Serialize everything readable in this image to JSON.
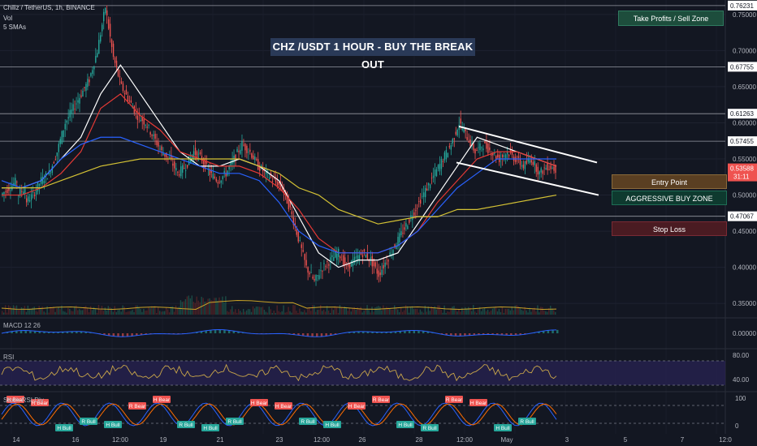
{
  "header": {
    "symbol": "Chiliz / TetherUS, 1h, BINANCE",
    "vol_label": "Vol",
    "sma_label": "5 SMAs"
  },
  "annotation_title": "CHZ /USDT 1 HOUR - BUY THE BREAK OUT",
  "zones": {
    "take_profit": "Take Profits / Sell Zone",
    "entry": "Entry Point",
    "aggressive": "AGGRESSIVE BUY ZONE",
    "stop": "Stop Loss"
  },
  "indicators": {
    "macd_label": "MACD 12 26",
    "rsi_label": "RSI",
    "stoch_label": "Stoch RSI Div"
  },
  "price_axis": {
    "ticks": [
      "0.75000",
      "0.70000",
      "0.65000",
      "0.60000",
      "0.55000",
      "0.50000",
      "0.45000",
      "0.40000",
      "0.35000"
    ],
    "current_price": "0.53588",
    "current_countdown": "31:11"
  },
  "level_labels": [
    "0.76231",
    "0.67755",
    "0.61263",
    "0.57455",
    "0.47067"
  ],
  "macd_axis": "0.00000",
  "rsi_axis": [
    "80.00",
    "40.00"
  ],
  "stoch_axis": [
    "100",
    "0"
  ],
  "time_axis": [
    "14",
    "16",
    "12:00",
    "19",
    "21",
    "23",
    "12:00",
    "26",
    "28",
    "12:00",
    "May",
    "3",
    "5",
    "7",
    "12:0"
  ],
  "colors": {
    "background": "#131722",
    "bull": "#26a69a",
    "bear": "#ef5350",
    "sma_white": "#ffffff",
    "sma_red": "#e53935",
    "sma_blue": "#2962ff",
    "sma_yellow": "#d4c234",
    "rsi_band": "#2a2456",
    "take_profit_zone": "#1d4d3c",
    "entry_zone": "#5a3f22",
    "aggressive_zone": "#0e3a2f",
    "stop_zone": "#4a1b22"
  },
  "chart_data": {
    "type": "candlestick",
    "title": "CHZ /USDT 1 HOUR - BUY THE BREAK OUT",
    "x_ticks": [
      "14",
      "16",
      "12:00",
      "19",
      "21",
      "23",
      "12:00",
      "26",
      "28",
      "12:00",
      "May",
      "3",
      "5",
      "7",
      "12:0"
    ],
    "y_range": [
      0.33,
      0.77
    ],
    "y_ticks": [
      0.75,
      0.7,
      0.65,
      0.6,
      0.55,
      0.5,
      0.45,
      0.4,
      0.35
    ],
    "horizontal_levels": [
      0.76231,
      0.67755,
      0.61263,
      0.57455,
      0.47067
    ],
    "current_price": 0.53588,
    "price_path": [
      [
        0.5,
        0.51
      ],
      [
        0.51,
        0.52
      ],
      [
        0.5,
        0.51
      ],
      [
        0.49,
        0.5
      ],
      [
        0.5,
        0.52
      ],
      [
        0.52,
        0.53
      ],
      [
        0.53,
        0.56
      ],
      [
        0.56,
        0.6
      ],
      [
        0.6,
        0.62
      ],
      [
        0.62,
        0.64
      ],
      [
        0.64,
        0.66
      ],
      [
        0.66,
        0.7
      ],
      [
        0.7,
        0.76
      ],
      [
        0.76,
        0.69
      ],
      [
        0.69,
        0.65
      ],
      [
        0.65,
        0.63
      ],
      [
        0.63,
        0.61
      ],
      [
        0.61,
        0.6
      ],
      [
        0.6,
        0.58
      ],
      [
        0.58,
        0.56
      ],
      [
        0.56,
        0.55
      ],
      [
        0.55,
        0.53
      ],
      [
        0.53,
        0.54
      ],
      [
        0.54,
        0.56
      ],
      [
        0.56,
        0.55
      ],
      [
        0.55,
        0.53
      ],
      [
        0.53,
        0.52
      ],
      [
        0.52,
        0.53
      ],
      [
        0.53,
        0.55
      ],
      [
        0.55,
        0.57
      ],
      [
        0.57,
        0.56
      ],
      [
        0.56,
        0.54
      ],
      [
        0.54,
        0.53
      ],
      [
        0.53,
        0.52
      ],
      [
        0.52,
        0.51
      ],
      [
        0.51,
        0.48
      ],
      [
        0.48,
        0.44
      ],
      [
        0.44,
        0.4
      ],
      [
        0.4,
        0.38
      ],
      [
        0.38,
        0.4
      ],
      [
        0.4,
        0.41
      ],
      [
        0.41,
        0.42
      ],
      [
        0.42,
        0.4
      ],
      [
        0.4,
        0.41
      ],
      [
        0.41,
        0.42
      ],
      [
        0.42,
        0.41
      ],
      [
        0.41,
        0.39
      ],
      [
        0.39,
        0.41
      ],
      [
        0.41,
        0.43
      ],
      [
        0.43,
        0.45
      ],
      [
        0.45,
        0.47
      ],
      [
        0.47,
        0.49
      ],
      [
        0.49,
        0.51
      ],
      [
        0.51,
        0.53
      ],
      [
        0.53,
        0.55
      ],
      [
        0.55,
        0.57
      ],
      [
        0.57,
        0.6
      ],
      [
        0.6,
        0.58
      ],
      [
        0.58,
        0.56
      ],
      [
        0.56,
        0.57
      ],
      [
        0.57,
        0.56
      ],
      [
        0.56,
        0.55
      ],
      [
        0.55,
        0.56
      ],
      [
        0.56,
        0.55
      ],
      [
        0.55,
        0.54
      ],
      [
        0.54,
        0.55
      ],
      [
        0.55,
        0.53
      ],
      [
        0.53,
        0.54
      ],
      [
        0.54,
        0.536
      ]
    ],
    "smas": [
      {
        "color": "#ffffff",
        "values": [
          0.51,
          0.51,
          0.52,
          0.55,
          0.58,
          0.64,
          0.68,
          0.64,
          0.6,
          0.56,
          0.54,
          0.54,
          0.55,
          0.54,
          0.52,
          0.47,
          0.42,
          0.4,
          0.41,
          0.41,
          0.42,
          0.46,
          0.5,
          0.54,
          0.58,
          0.57,
          0.56,
          0.55,
          0.54
        ]
      },
      {
        "color": "#e53935",
        "values": [
          0.5,
          0.5,
          0.51,
          0.53,
          0.56,
          0.62,
          0.64,
          0.61,
          0.59,
          0.56,
          0.55,
          0.54,
          0.54,
          0.53,
          0.51,
          0.48,
          0.44,
          0.42,
          0.42,
          0.42,
          0.43,
          0.45,
          0.49,
          0.52,
          0.55,
          0.56,
          0.56,
          0.55,
          0.54
        ]
      },
      {
        "color": "#2962ff",
        "values": [
          0.52,
          0.51,
          0.52,
          0.55,
          0.57,
          0.58,
          0.58,
          0.57,
          0.56,
          0.55,
          0.54,
          0.53,
          0.53,
          0.52,
          0.49,
          0.45,
          0.43,
          0.42,
          0.42,
          0.42,
          0.43,
          0.45,
          0.48,
          0.51,
          0.53,
          0.55,
          0.55,
          0.55,
          0.55
        ]
      },
      {
        "color": "#d4c234",
        "values": [
          0.51,
          0.51,
          0.51,
          0.52,
          0.53,
          0.54,
          0.545,
          0.55,
          0.55,
          0.55,
          0.55,
          0.55,
          0.55,
          0.54,
          0.53,
          0.51,
          0.5,
          0.48,
          0.47,
          0.46,
          0.465,
          0.47,
          0.47,
          0.48,
          0.48,
          0.485,
          0.49,
          0.495,
          0.5
        ]
      }
    ],
    "triangle": {
      "upper": [
        [
          0.595,
          0.6
        ],
        [
          0.53,
          0.545
        ]
      ],
      "lower": [
        [
          0.545,
          0.545
        ],
        [
          0.515,
          0.5
        ]
      ]
    },
    "zones": [
      {
        "label": "Take Profits / Sell Zone",
        "low": 0.75,
        "high": 0.765
      },
      {
        "label": "Entry Point",
        "low": 0.52,
        "high": 0.54
      },
      {
        "label": "AGGRESSIVE BUY ZONE",
        "low": 0.495,
        "high": 0.515
      },
      {
        "label": "Stop Loss",
        "low": 0.445,
        "high": 0.465
      }
    ],
    "rsi_range": [
      40,
      80
    ],
    "stoch_range": [
      0,
      100
    ],
    "stoch_signals": [
      {
        "label": "H Bear",
        "type": "bear"
      },
      {
        "label": "R Bear",
        "type": "bear"
      },
      {
        "label": "H Bull",
        "type": "bull"
      },
      {
        "label": "R Bull",
        "type": "bull"
      },
      {
        "label": "H Bull",
        "type": "bull"
      },
      {
        "label": "R Bear",
        "type": "bear"
      },
      {
        "label": "H Bear",
        "type": "bear"
      },
      {
        "label": "R Bull",
        "type": "bull"
      },
      {
        "label": "H Bull",
        "type": "bull"
      },
      {
        "label": "R Bull",
        "type": "bull"
      },
      {
        "label": "H Bear",
        "type": "bear"
      },
      {
        "label": "H Bear",
        "type": "bear"
      },
      {
        "label": "R Bull",
        "type": "bull"
      },
      {
        "label": "H Bull",
        "type": "bull"
      },
      {
        "label": "H Bear",
        "type": "bear"
      },
      {
        "label": "R Bear",
        "type": "bear"
      },
      {
        "label": "H Bull",
        "type": "bull"
      },
      {
        "label": "R Bull",
        "type": "bull"
      },
      {
        "label": "R Bear",
        "type": "bear"
      },
      {
        "label": "H Bear",
        "type": "bear"
      },
      {
        "label": "H Bull",
        "type": "bull"
      },
      {
        "label": "R Bull",
        "type": "bull"
      }
    ]
  }
}
